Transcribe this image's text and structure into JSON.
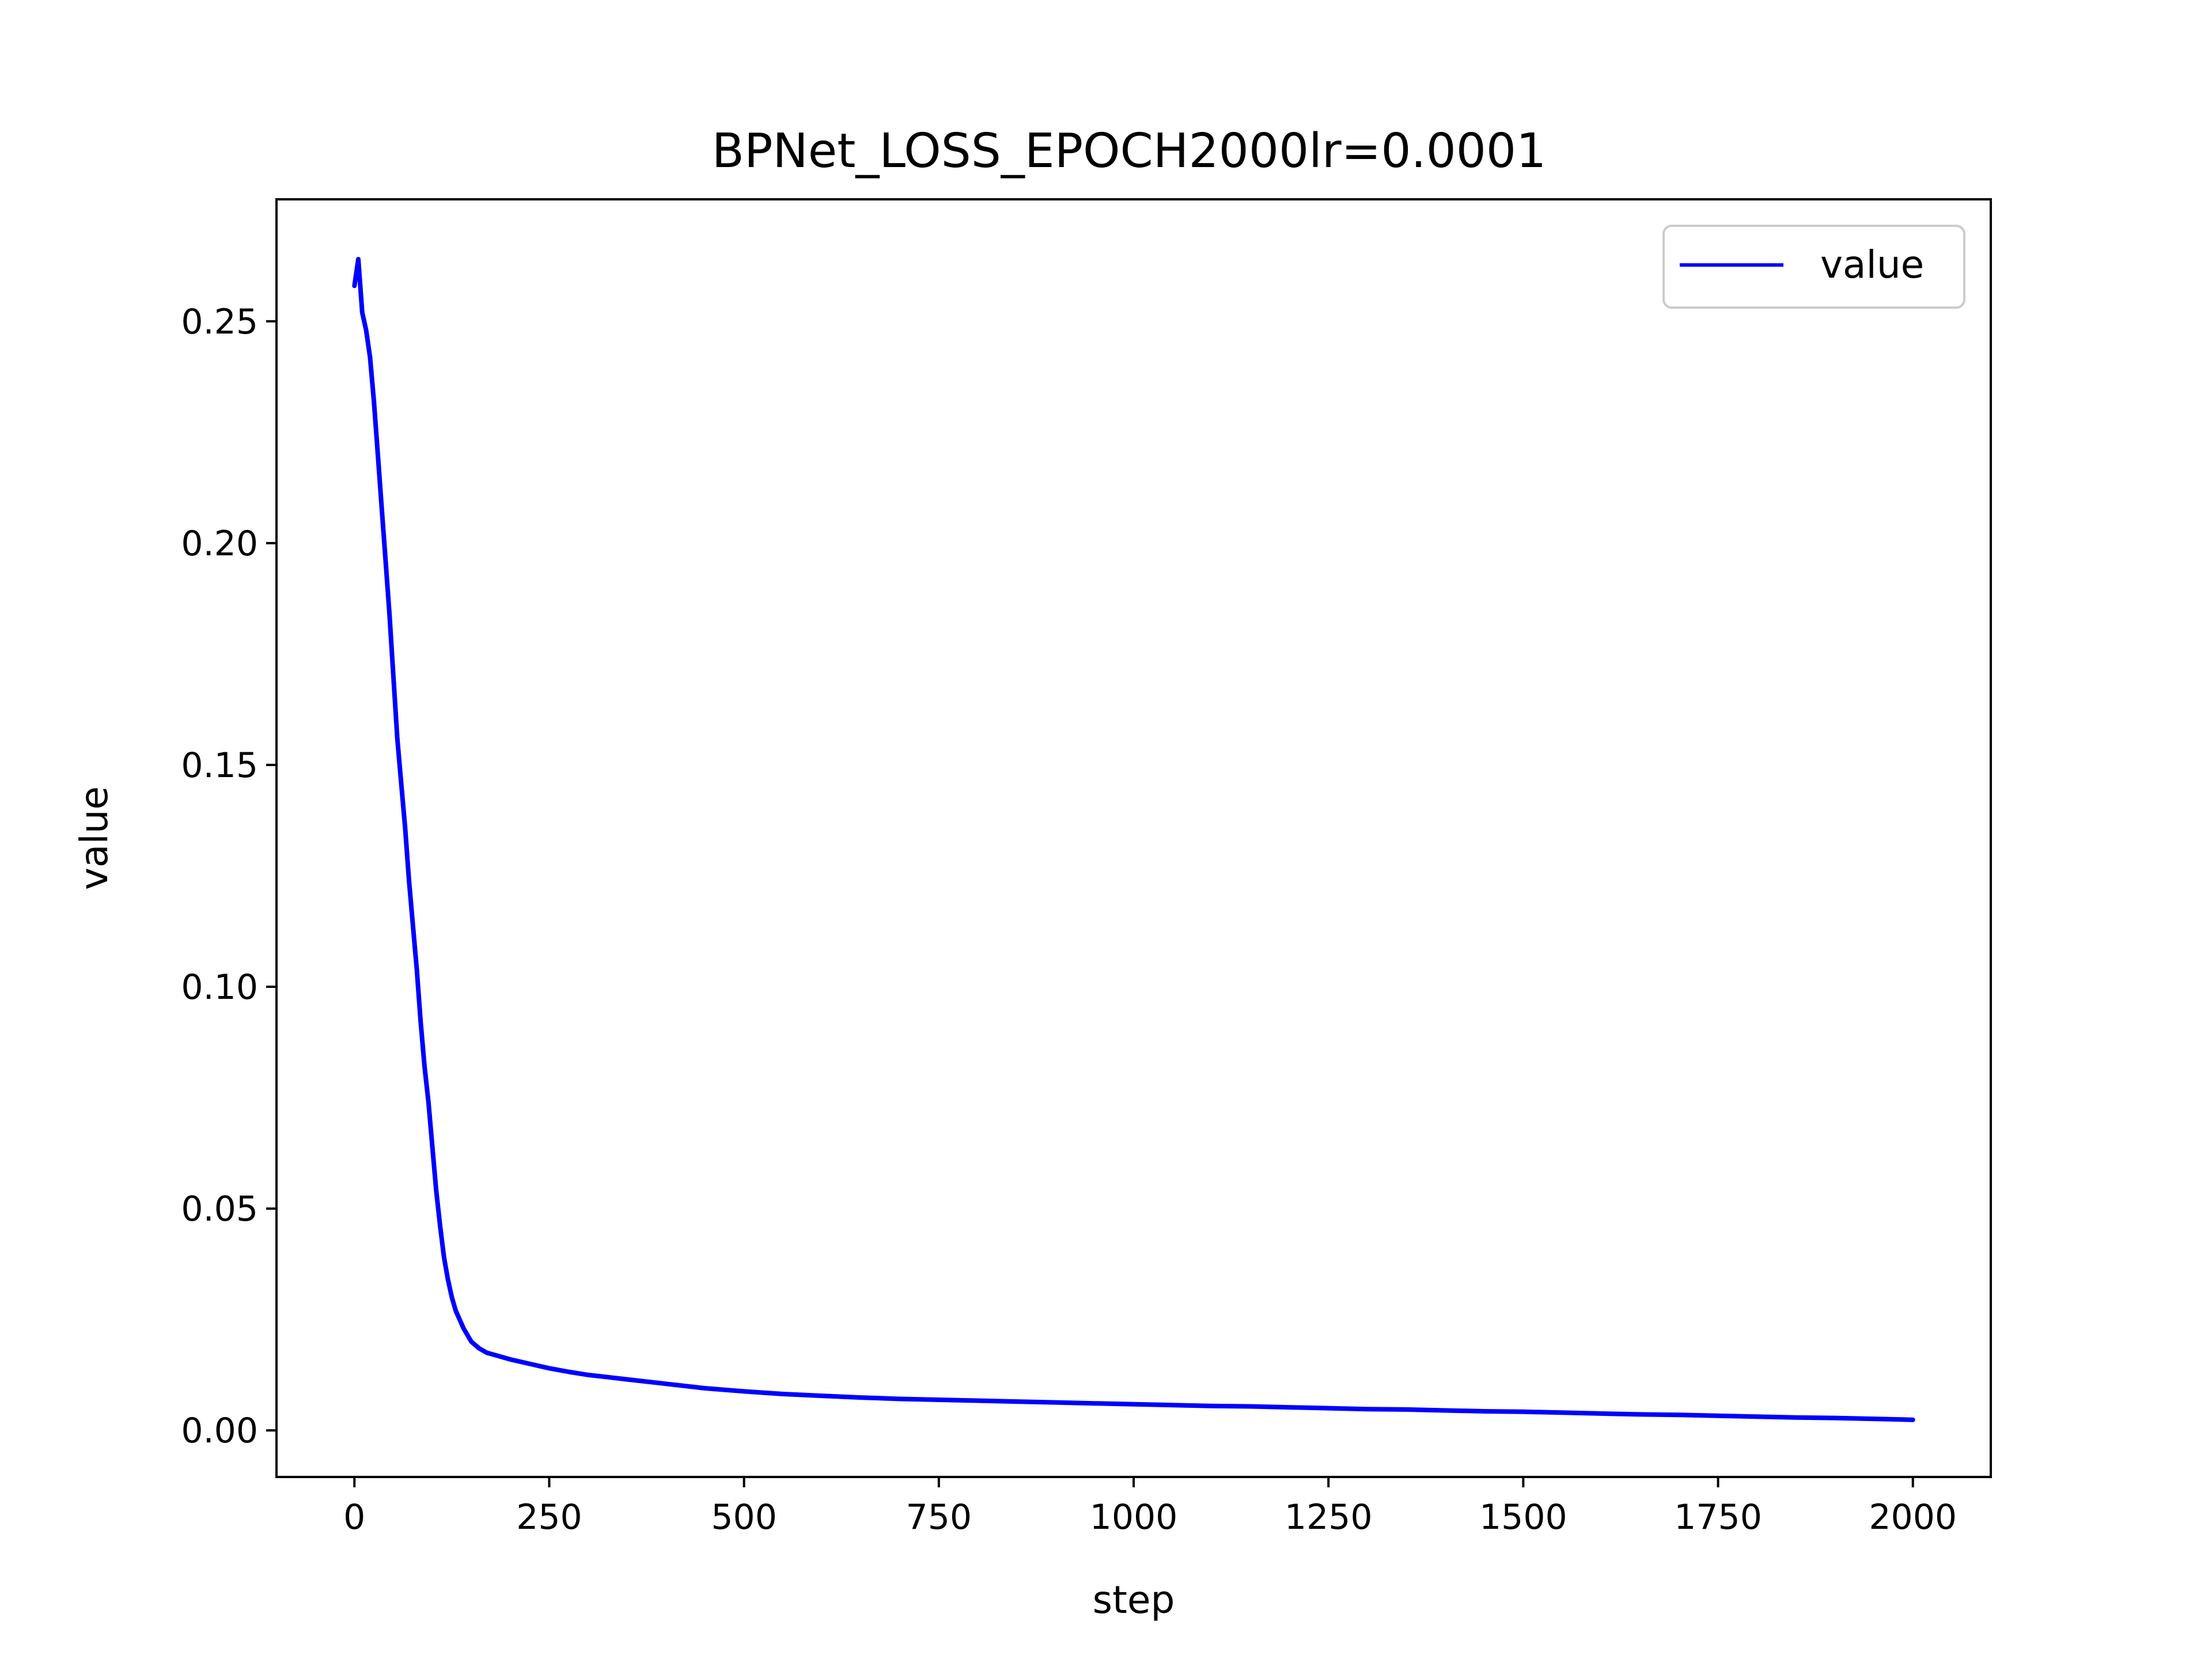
{
  "chart_data": {
    "type": "line",
    "title": "BPNet_LOSS_EPOCH2000lr=0.0001",
    "xlabel": "step",
    "ylabel": "value",
    "xlim": [
      -100,
      2100
    ],
    "ylim": [
      -0.0105,
      0.2775
    ],
    "x_ticks": [
      0,
      250,
      500,
      750,
      1000,
      1250,
      1500,
      1750,
      2000
    ],
    "y_ticks": [
      0.0,
      0.05,
      0.1,
      0.15,
      0.2,
      0.25
    ],
    "x_tick_labels": [
      "0",
      "250",
      "500",
      "750",
      "1000",
      "1250",
      "1500",
      "1750",
      "2000"
    ],
    "y_tick_labels": [
      "0.00",
      "0.05",
      "0.10",
      "0.15",
      "0.20",
      "0.25"
    ],
    "grid": false,
    "legend": {
      "position": "top-right",
      "entries": [
        "value"
      ]
    },
    "series": [
      {
        "name": "value",
        "color": "#0000ff",
        "x": [
          0,
          5,
          10,
          15,
          20,
          25,
          30,
          35,
          40,
          45,
          50,
          55,
          60,
          65,
          70,
          75,
          80,
          85,
          90,
          95,
          100,
          105,
          110,
          115,
          120,
          125,
          130,
          140,
          150,
          160,
          170,
          180,
          200,
          225,
          250,
          275,
          300,
          325,
          350,
          400,
          450,
          500,
          550,
          600,
          650,
          700,
          750,
          800,
          850,
          900,
          950,
          1000,
          1050,
          1100,
          1150,
          1200,
          1250,
          1300,
          1350,
          1400,
          1450,
          1500,
          1550,
          1600,
          1650,
          1700,
          1750,
          1800,
          1850,
          1900,
          1950,
          2000
        ],
        "y": [
          0.258,
          0.264,
          0.252,
          0.248,
          0.242,
          0.232,
          0.22,
          0.208,
          0.196,
          0.184,
          0.17,
          0.156,
          0.146,
          0.136,
          0.124,
          0.114,
          0.104,
          0.092,
          0.082,
          0.074,
          0.064,
          0.054,
          0.046,
          0.039,
          0.034,
          0.03,
          0.027,
          0.023,
          0.02,
          0.0185,
          0.0175,
          0.017,
          0.016,
          0.015,
          0.014,
          0.0132,
          0.0125,
          0.012,
          0.0115,
          0.0105,
          0.0095,
          0.0088,
          0.0082,
          0.0078,
          0.0074,
          0.0071,
          0.0069,
          0.0067,
          0.0065,
          0.0063,
          0.0061,
          0.0059,
          0.0057,
          0.0055,
          0.0054,
          0.0052,
          0.005,
          0.0048,
          0.0047,
          0.0045,
          0.0043,
          0.0042,
          0.004,
          0.0038,
          0.0036,
          0.0035,
          0.0033,
          0.0031,
          0.0029,
          0.0028,
          0.0026,
          0.0024
        ]
      }
    ]
  }
}
